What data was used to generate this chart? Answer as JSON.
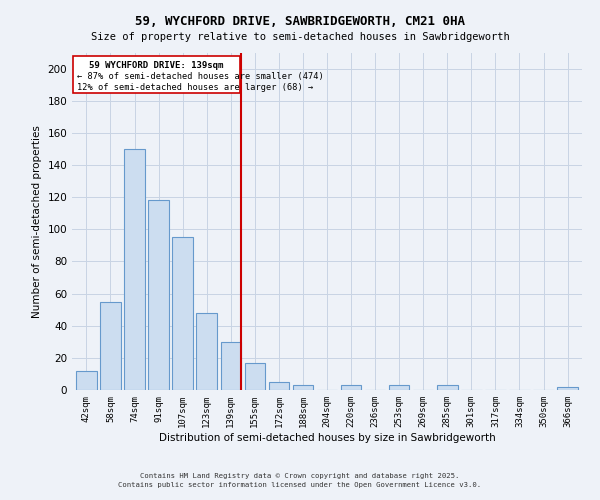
{
  "title": "59, WYCHFORD DRIVE, SAWBRIDGEWORTH, CM21 0HA",
  "subtitle": "Size of property relative to semi-detached houses in Sawbridgeworth",
  "xlabel": "Distribution of semi-detached houses by size in Sawbridgeworth",
  "ylabel": "Number of semi-detached properties",
  "bar_labels": [
    "42sqm",
    "58sqm",
    "74sqm",
    "91sqm",
    "107sqm",
    "123sqm",
    "139sqm",
    "155sqm",
    "172sqm",
    "188sqm",
    "204sqm",
    "220sqm",
    "236sqm",
    "253sqm",
    "269sqm",
    "285sqm",
    "301sqm",
    "317sqm",
    "334sqm",
    "350sqm",
    "366sqm"
  ],
  "bar_values": [
    12,
    55,
    150,
    118,
    95,
    48,
    30,
    17,
    5,
    3,
    0,
    3,
    0,
    3,
    0,
    3,
    0,
    0,
    0,
    0,
    2
  ],
  "bar_color": "#ccddf0",
  "bar_edge_color": "#6699cc",
  "reference_line_color": "#cc0000",
  "annotation_title": "59 WYCHFORD DRIVE: 139sqm",
  "annotation_line1": "← 87% of semi-detached houses are smaller (474)",
  "annotation_line2": "12% of semi-detached houses are larger (68) →",
  "annotation_border_color": "#cc0000",
  "ylim": [
    0,
    210
  ],
  "yticks": [
    0,
    20,
    40,
    60,
    80,
    100,
    120,
    140,
    160,
    180,
    200
  ],
  "footer_line1": "Contains HM Land Registry data © Crown copyright and database right 2025.",
  "footer_line2": "Contains public sector information licensed under the Open Government Licence v3.0.",
  "background_color": "#eef2f8",
  "grid_color": "#c8d4e4"
}
